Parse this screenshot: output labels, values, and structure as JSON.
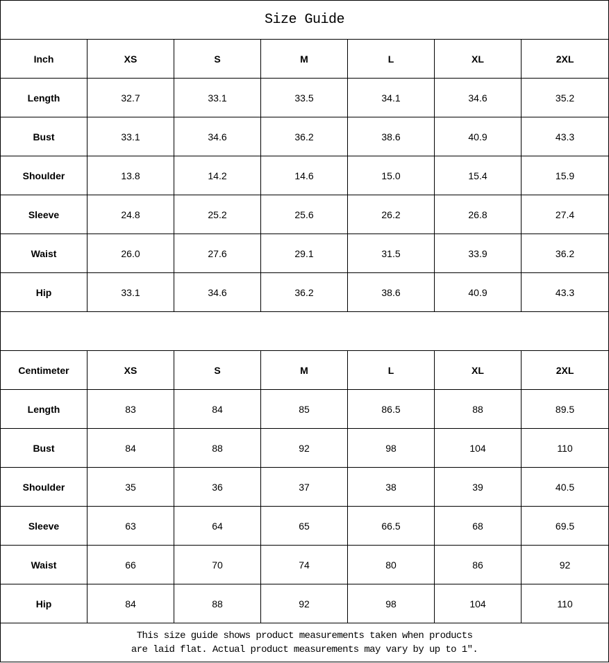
{
  "title": "Size Guide",
  "sizes": [
    "XS",
    "S",
    "M",
    "L",
    "XL",
    "2XL"
  ],
  "tables": [
    {
      "unit": "Inch",
      "rows": [
        {
          "label": "Length",
          "values": [
            "32.7",
            "33.1",
            "33.5",
            "34.1",
            "34.6",
            "35.2"
          ]
        },
        {
          "label": "Bust",
          "values": [
            "33.1",
            "34.6",
            "36.2",
            "38.6",
            "40.9",
            "43.3"
          ]
        },
        {
          "label": "Shoulder",
          "values": [
            "13.8",
            "14.2",
            "14.6",
            "15.0",
            "15.4",
            "15.9"
          ]
        },
        {
          "label": "Sleeve",
          "values": [
            "24.8",
            "25.2",
            "25.6",
            "26.2",
            "26.8",
            "27.4"
          ]
        },
        {
          "label": "Waist",
          "values": [
            "26.0",
            "27.6",
            "29.1",
            "31.5",
            "33.9",
            "36.2"
          ]
        },
        {
          "label": "Hip",
          "values": [
            "33.1",
            "34.6",
            "36.2",
            "38.6",
            "40.9",
            "43.3"
          ]
        }
      ]
    },
    {
      "unit": "Centimeter",
      "rows": [
        {
          "label": "Length",
          "values": [
            "83",
            "84",
            "85",
            "86.5",
            "88",
            "89.5"
          ]
        },
        {
          "label": "Bust",
          "values": [
            "84",
            "88",
            "92",
            "98",
            "104",
            "110"
          ]
        },
        {
          "label": "Shoulder",
          "values": [
            "35",
            "36",
            "37",
            "38",
            "39",
            "40.5"
          ]
        },
        {
          "label": "Sleeve",
          "values": [
            "63",
            "64",
            "65",
            "66.5",
            "68",
            "69.5"
          ]
        },
        {
          "label": "Waist",
          "values": [
            "66",
            "70",
            "74",
            "80",
            "86",
            "92"
          ]
        },
        {
          "label": "Hip",
          "values": [
            "84",
            "88",
            "92",
            "98",
            "104",
            "110"
          ]
        }
      ]
    }
  ],
  "note": {
    "line1": "This size guide shows product measurements taken when products",
    "line2": "are laid flat. Actual product measurements may vary by up to 1″."
  }
}
